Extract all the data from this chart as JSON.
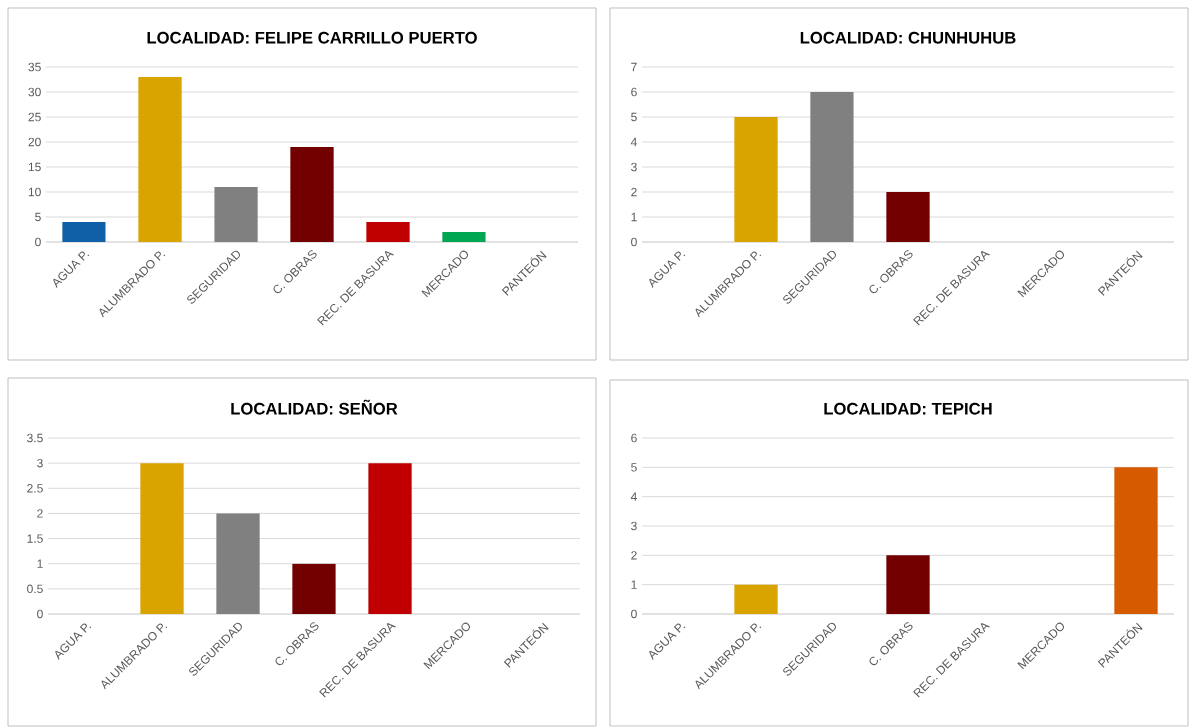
{
  "chart_data": [
    {
      "type": "bar",
      "title": "LOCALIDAD:  FELIPE CARRILLO PUERTO",
      "categories": [
        "AGUA P.",
        "ALUMBRADO P.",
        "SEGURIDAD",
        "C. OBRAS",
        "REC. DE BASURA",
        "MERCADO",
        "PANTEÓN"
      ],
      "values": [
        4,
        33,
        11,
        19,
        4,
        2,
        0
      ],
      "colors": [
        "#1060a8",
        "#d9a300",
        "#808080",
        "#720000",
        "#c00000",
        "#00a651",
        "#d55a00"
      ],
      "ylim": [
        0,
        35
      ],
      "yticks": [
        0,
        5,
        10,
        15,
        20,
        25,
        30,
        35
      ],
      "grid": "y",
      "legend": false
    },
    {
      "type": "bar",
      "title": "LOCALIDAD:  CHUNHUHUB",
      "categories": [
        "AGUA P.",
        "ALUMBRADO P.",
        "SEGURIDAD",
        "C. OBRAS",
        "REC. DE BASURA",
        "MERCADO",
        "PANTEÓN"
      ],
      "values": [
        0,
        5,
        6,
        2,
        0,
        0,
        0
      ],
      "colors": [
        "#1060a8",
        "#d9a300",
        "#808080",
        "#720000",
        "#c00000",
        "#00a651",
        "#d55a00"
      ],
      "ylim": [
        0,
        7
      ],
      "yticks": [
        0,
        1,
        2,
        3,
        4,
        5,
        6,
        7
      ],
      "grid": "y",
      "legend": false
    },
    {
      "type": "bar",
      "title": "LOCALIDAD:  SEÑOR",
      "categories": [
        "AGUA P.",
        "ALUMBRADO P.",
        "SEGURIDAD",
        "C. OBRAS",
        "REC. DE BASURA",
        "MERCADO",
        "PANTEÓN"
      ],
      "values": [
        0,
        3,
        2,
        1,
        3,
        0,
        0
      ],
      "colors": [
        "#1060a8",
        "#d9a300",
        "#808080",
        "#720000",
        "#c00000",
        "#00a651",
        "#d55a00"
      ],
      "ylim": [
        0,
        3.5
      ],
      "yticks": [
        0,
        0.5,
        1,
        1.5,
        2,
        2.5,
        3,
        3.5
      ],
      "grid": "y",
      "legend": false
    },
    {
      "type": "bar",
      "title": "LOCALIDAD:  TEPICH",
      "categories": [
        "AGUA P.",
        "ALUMBRADO P.",
        "SEGURIDAD",
        "C. OBRAS",
        "REC. DE BASURA",
        "MERCADO",
        "PANTEÓN"
      ],
      "values": [
        0,
        1,
        0,
        2,
        0,
        0,
        5
      ],
      "colors": [
        "#1060a8",
        "#d9a300",
        "#808080",
        "#720000",
        "#c00000",
        "#00a651",
        "#d55a00"
      ],
      "ylim": [
        0,
        6
      ],
      "yticks": [
        0,
        1,
        2,
        3,
        4,
        5,
        6
      ],
      "grid": "y",
      "legend": false
    }
  ]
}
